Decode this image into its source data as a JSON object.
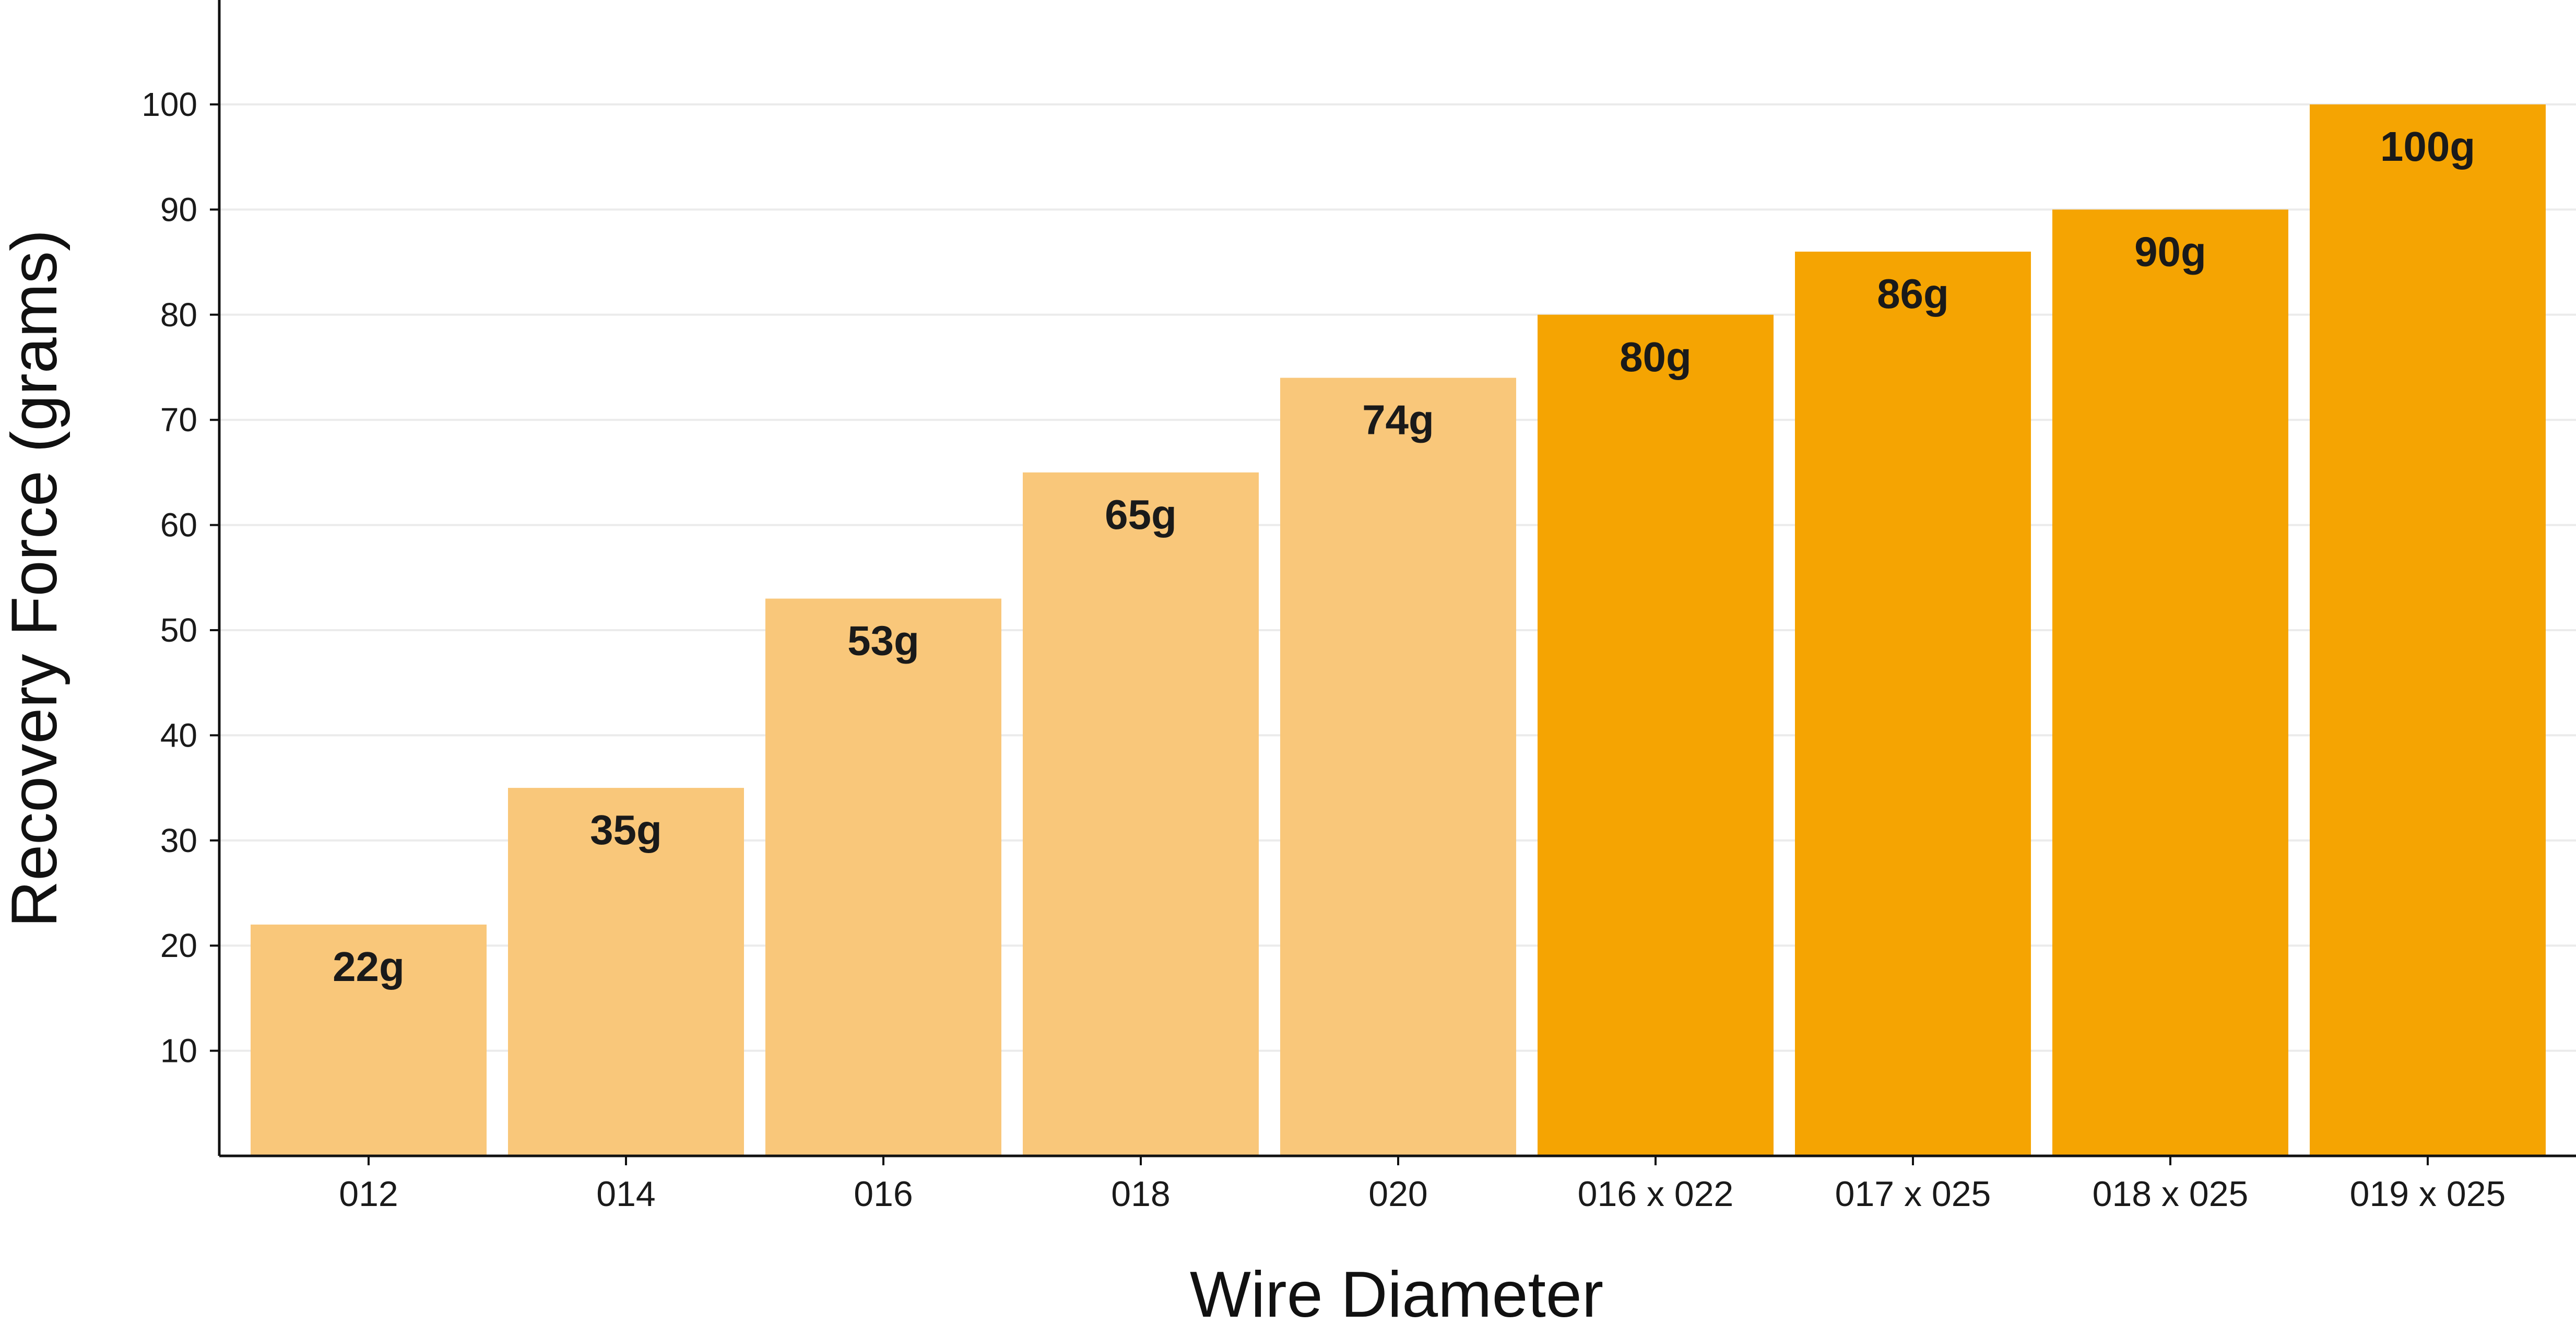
{
  "chart_data": {
    "type": "bar",
    "categories": [
      "012",
      "014",
      "016",
      "018",
      "020",
      "016 x 022",
      "017 x 025",
      "018 x 025",
      "019 x 025"
    ],
    "values": [
      22,
      35,
      53,
      65,
      74,
      80,
      86,
      90,
      100
    ],
    "data_labels": [
      "22g",
      "35g",
      "53g",
      "65g",
      "74g",
      "80g",
      "86g",
      "90g",
      "100g"
    ],
    "bar_colors": [
      "#F9C77A",
      "#F9C77A",
      "#F9C77A",
      "#F9C77A",
      "#F9C77A",
      "#F5A402",
      "#F5A402",
      "#F5A402",
      "#F5A402"
    ],
    "xlabel": "Wire Diameter",
    "ylabel": "Recovery Force (grams)",
    "ylim": [
      0,
      110
    ],
    "yticks": [
      10,
      20,
      30,
      40,
      50,
      60,
      70,
      80,
      90,
      100
    ],
    "grid": "horizontal",
    "legend": "none"
  }
}
